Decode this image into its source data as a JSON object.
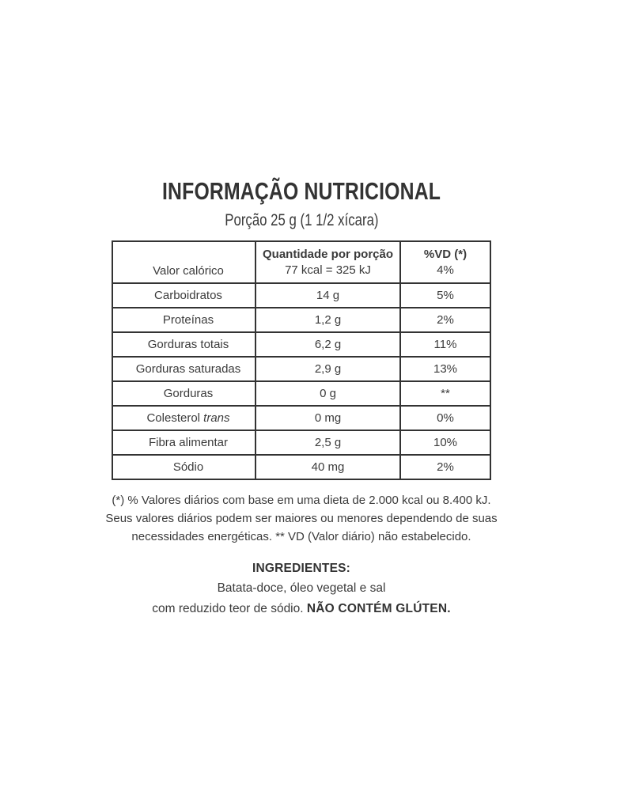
{
  "title": "INFORMAÇÃO NUTRICIONAL",
  "serving": "Porção 25 g (1 1/2 xícara)",
  "table": {
    "col2_header": "Quantidade por porção",
    "col3_header": "%VD (*)",
    "first_row": {
      "label": "Valor calórico",
      "amount": "77 kcal = 325 kJ",
      "dv": "4%"
    },
    "rows": [
      {
        "label": "Carboidratos",
        "amount": "14 g",
        "dv": "5%"
      },
      {
        "label": "Proteínas",
        "amount": "1,2 g",
        "dv": "2%"
      },
      {
        "label": "Gorduras totais",
        "amount": "6,2 g",
        "dv": "11%"
      },
      {
        "label": "Gorduras saturadas",
        "amount": "2,9 g",
        "dv": "13%"
      },
      {
        "label": "Gorduras",
        "amount": "0 g",
        "dv": "**"
      },
      {
        "label": "Colesterol ",
        "label_italic": "trans",
        "amount": "0 mg",
        "dv": "0%"
      },
      {
        "label": "Fibra alimentar",
        "amount": "2,5 g",
        "dv": "10%"
      },
      {
        "label": "Sódio",
        "amount": "40 mg",
        "dv": "2%"
      }
    ]
  },
  "footnote_lines": [
    "(*) % Valores diários com base em uma dieta de 2.000 kcal ou 8.400 kJ.",
    "Seus valores diários podem ser maiores ou menores dependendo de suas",
    "necessidades energéticas. ** VD (Valor diário) não estabelecido."
  ],
  "ingredients": {
    "heading": "INGREDIENTES:",
    "line1": "Batata-doce, óleo vegetal e sal",
    "line2_regular": "com reduzido teor de sódio. ",
    "line2_bold": "NÃO CONTÉM GLÚTEN."
  },
  "colors": {
    "background": "#ffffff",
    "text": "#3b3b3b",
    "border": "#333333"
  }
}
